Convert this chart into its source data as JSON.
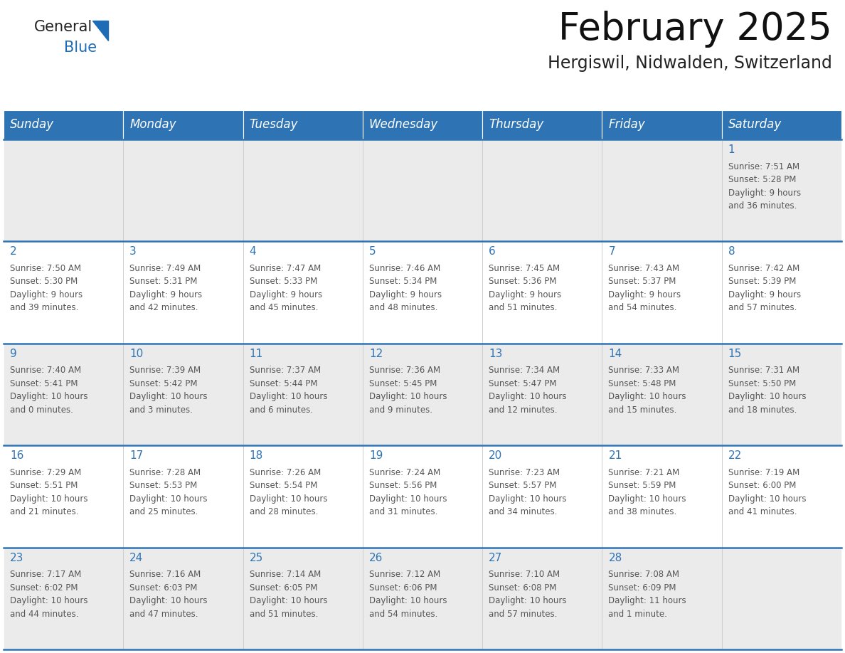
{
  "title": "February 2025",
  "subtitle": "Hergiswil, Nidwalden, Switzerland",
  "days_of_week": [
    "Sunday",
    "Monday",
    "Tuesday",
    "Wednesday",
    "Thursday",
    "Friday",
    "Saturday"
  ],
  "header_bg": "#2E74B5",
  "header_text_color": "#FFFFFF",
  "row_odd_bg": "#EBEBEB",
  "row_even_bg": "#FFFFFF",
  "day_num_color": "#2E74B5",
  "info_text_color": "#555555",
  "separator_color": "#2E74B5",
  "title_fontsize": 38,
  "subtitle_fontsize": 17,
  "header_fontsize": 12,
  "day_num_fontsize": 11,
  "info_fontsize": 8.5,
  "logo_general_color": "#222222",
  "logo_blue_color": "#1E6CB5",
  "logo_triangle_color": "#1E6CB5",
  "calendar_data": [
    {
      "day": 1,
      "col": 6,
      "row": 0,
      "sunrise": "7:51 AM",
      "sunset": "5:28 PM",
      "daylight_h": "9 hours",
      "daylight_m": "and 36 minutes."
    },
    {
      "day": 2,
      "col": 0,
      "row": 1,
      "sunrise": "7:50 AM",
      "sunset": "5:30 PM",
      "daylight_h": "9 hours",
      "daylight_m": "and 39 minutes."
    },
    {
      "day": 3,
      "col": 1,
      "row": 1,
      "sunrise": "7:49 AM",
      "sunset": "5:31 PM",
      "daylight_h": "9 hours",
      "daylight_m": "and 42 minutes."
    },
    {
      "day": 4,
      "col": 2,
      "row": 1,
      "sunrise": "7:47 AM",
      "sunset": "5:33 PM",
      "daylight_h": "9 hours",
      "daylight_m": "and 45 minutes."
    },
    {
      "day": 5,
      "col": 3,
      "row": 1,
      "sunrise": "7:46 AM",
      "sunset": "5:34 PM",
      "daylight_h": "9 hours",
      "daylight_m": "and 48 minutes."
    },
    {
      "day": 6,
      "col": 4,
      "row": 1,
      "sunrise": "7:45 AM",
      "sunset": "5:36 PM",
      "daylight_h": "9 hours",
      "daylight_m": "and 51 minutes."
    },
    {
      "day": 7,
      "col": 5,
      "row": 1,
      "sunrise": "7:43 AM",
      "sunset": "5:37 PM",
      "daylight_h": "9 hours",
      "daylight_m": "and 54 minutes."
    },
    {
      "day": 8,
      "col": 6,
      "row": 1,
      "sunrise": "7:42 AM",
      "sunset": "5:39 PM",
      "daylight_h": "9 hours",
      "daylight_m": "and 57 minutes."
    },
    {
      "day": 9,
      "col": 0,
      "row": 2,
      "sunrise": "7:40 AM",
      "sunset": "5:41 PM",
      "daylight_h": "10 hours",
      "daylight_m": "and 0 minutes."
    },
    {
      "day": 10,
      "col": 1,
      "row": 2,
      "sunrise": "7:39 AM",
      "sunset": "5:42 PM",
      "daylight_h": "10 hours",
      "daylight_m": "and 3 minutes."
    },
    {
      "day": 11,
      "col": 2,
      "row": 2,
      "sunrise": "7:37 AM",
      "sunset": "5:44 PM",
      "daylight_h": "10 hours",
      "daylight_m": "and 6 minutes."
    },
    {
      "day": 12,
      "col": 3,
      "row": 2,
      "sunrise": "7:36 AM",
      "sunset": "5:45 PM",
      "daylight_h": "10 hours",
      "daylight_m": "and 9 minutes."
    },
    {
      "day": 13,
      "col": 4,
      "row": 2,
      "sunrise": "7:34 AM",
      "sunset": "5:47 PM",
      "daylight_h": "10 hours",
      "daylight_m": "and 12 minutes."
    },
    {
      "day": 14,
      "col": 5,
      "row": 2,
      "sunrise": "7:33 AM",
      "sunset": "5:48 PM",
      "daylight_h": "10 hours",
      "daylight_m": "and 15 minutes."
    },
    {
      "day": 15,
      "col": 6,
      "row": 2,
      "sunrise": "7:31 AM",
      "sunset": "5:50 PM",
      "daylight_h": "10 hours",
      "daylight_m": "and 18 minutes."
    },
    {
      "day": 16,
      "col": 0,
      "row": 3,
      "sunrise": "7:29 AM",
      "sunset": "5:51 PM",
      "daylight_h": "10 hours",
      "daylight_m": "and 21 minutes."
    },
    {
      "day": 17,
      "col": 1,
      "row": 3,
      "sunrise": "7:28 AM",
      "sunset": "5:53 PM",
      "daylight_h": "10 hours",
      "daylight_m": "and 25 minutes."
    },
    {
      "day": 18,
      "col": 2,
      "row": 3,
      "sunrise": "7:26 AM",
      "sunset": "5:54 PM",
      "daylight_h": "10 hours",
      "daylight_m": "and 28 minutes."
    },
    {
      "day": 19,
      "col": 3,
      "row": 3,
      "sunrise": "7:24 AM",
      "sunset": "5:56 PM",
      "daylight_h": "10 hours",
      "daylight_m": "and 31 minutes."
    },
    {
      "day": 20,
      "col": 4,
      "row": 3,
      "sunrise": "7:23 AM",
      "sunset": "5:57 PM",
      "daylight_h": "10 hours",
      "daylight_m": "and 34 minutes."
    },
    {
      "day": 21,
      "col": 5,
      "row": 3,
      "sunrise": "7:21 AM",
      "sunset": "5:59 PM",
      "daylight_h": "10 hours",
      "daylight_m": "and 38 minutes."
    },
    {
      "day": 22,
      "col": 6,
      "row": 3,
      "sunrise": "7:19 AM",
      "sunset": "6:00 PM",
      "daylight_h": "10 hours",
      "daylight_m": "and 41 minutes."
    },
    {
      "day": 23,
      "col": 0,
      "row": 4,
      "sunrise": "7:17 AM",
      "sunset": "6:02 PM",
      "daylight_h": "10 hours",
      "daylight_m": "and 44 minutes."
    },
    {
      "day": 24,
      "col": 1,
      "row": 4,
      "sunrise": "7:16 AM",
      "sunset": "6:03 PM",
      "daylight_h": "10 hours",
      "daylight_m": "and 47 minutes."
    },
    {
      "day": 25,
      "col": 2,
      "row": 4,
      "sunrise": "7:14 AM",
      "sunset": "6:05 PM",
      "daylight_h": "10 hours",
      "daylight_m": "and 51 minutes."
    },
    {
      "day": 26,
      "col": 3,
      "row": 4,
      "sunrise": "7:12 AM",
      "sunset": "6:06 PM",
      "daylight_h": "10 hours",
      "daylight_m": "and 54 minutes."
    },
    {
      "day": 27,
      "col": 4,
      "row": 4,
      "sunrise": "7:10 AM",
      "sunset": "6:08 PM",
      "daylight_h": "10 hours",
      "daylight_m": "and 57 minutes."
    },
    {
      "day": 28,
      "col": 5,
      "row": 4,
      "sunrise": "7:08 AM",
      "sunset": "6:09 PM",
      "daylight_h": "11 hours",
      "daylight_m": "and 1 minute."
    }
  ]
}
